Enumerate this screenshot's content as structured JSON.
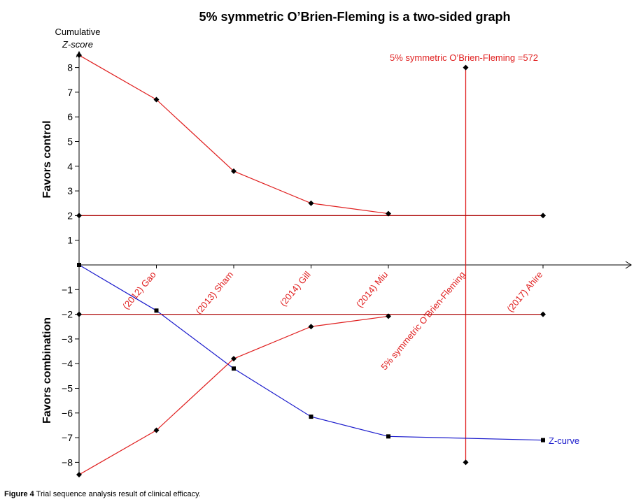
{
  "caption": {
    "label": "Figure 4",
    "text": "Trial sequence analysis result of clinical efficacy."
  },
  "chart_data": {
    "type": "line",
    "title": "5% symmetric O’Brien-Fleming is a two-sided graph",
    "ylabel_top": "Favors control",
    "ylabel_bottom": "Favors combination",
    "y_axis_title_line1": "Cumulative",
    "y_axis_title_line2": "Z-score",
    "ylim": [
      -8.5,
      8.5
    ],
    "y_ticks": [
      8,
      7,
      6,
      5,
      4,
      3,
      2,
      1,
      -1,
      -2,
      -3,
      -4,
      -5,
      -6,
      -7,
      -8
    ],
    "x_positions": [
      0,
      1,
      2,
      3,
      4,
      5,
      6
    ],
    "categories": [
      "",
      "(2012) Gao",
      "(2013) Sham",
      "(2014) Gill",
      "(2014) Miu",
      "5% symmetric O’Brien-Fleming",
      "(2017) Ahire"
    ],
    "series": [
      {
        "name": "Z-curve",
        "color": "#1a1acc",
        "marker": "square",
        "points": [
          [
            0,
            0
          ],
          [
            1,
            -1.85
          ],
          [
            2,
            -4.2
          ],
          [
            3,
            -6.15
          ],
          [
            4,
            -6.95
          ],
          [
            6,
            -7.1
          ]
        ]
      },
      {
        "name": "",
        "color": "#e02020",
        "marker": "diamond",
        "points": [
          [
            0,
            8.5
          ],
          [
            1,
            6.7
          ],
          [
            2,
            3.8
          ],
          [
            3,
            2.5
          ],
          [
            4,
            2.08
          ]
        ]
      },
      {
        "name": "",
        "color": "#e02020",
        "marker": "diamond",
        "points": [
          [
            0,
            -8.5
          ],
          [
            1,
            -6.7
          ],
          [
            2,
            -3.8
          ],
          [
            3,
            -2.5
          ],
          [
            4,
            -2.08
          ]
        ]
      },
      {
        "name": "",
        "color": "#b01010",
        "marker": "diamond",
        "points": [
          [
            0,
            2
          ],
          [
            6,
            2
          ]
        ]
      },
      {
        "name": "",
        "color": "#b01010",
        "marker": "diamond",
        "points": [
          [
            0,
            -2
          ],
          [
            6,
            -2
          ]
        ]
      }
    ],
    "vertical_line": {
      "x": 5,
      "y_from": -8,
      "y_to": 8,
      "color": "#e02020",
      "label": "5% symmetric O’Brien-Fleming =572"
    },
    "z_label": "Z-curve",
    "colors": {
      "red": "#e02020",
      "dark_red": "#b01010",
      "blue": "#1a1acc",
      "axis": "#000000"
    }
  }
}
